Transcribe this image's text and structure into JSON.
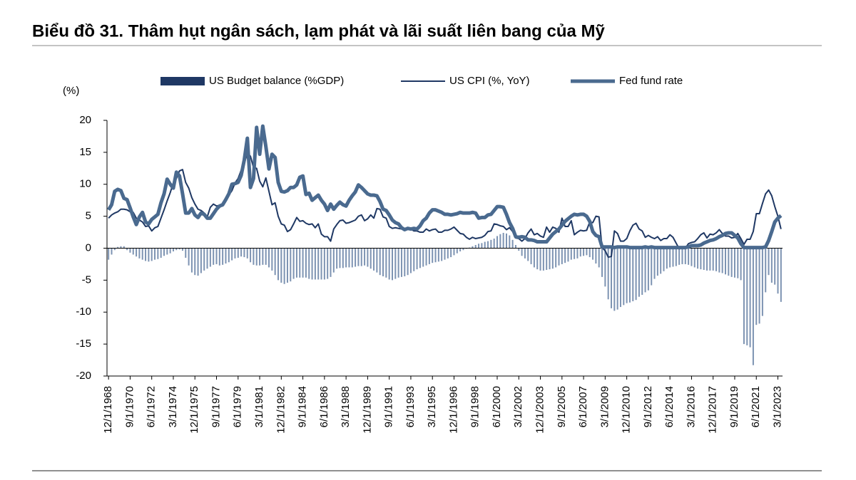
{
  "chart_data": {
    "type": "combo",
    "title": "Biểu đồ 31. Thâm hụt ngân sách, lạm phát và lãi suất liên bang của Mỹ",
    "y_label": "(%)",
    "ylim": [
      -20,
      20
    ],
    "yticks": [
      -20,
      -15,
      -10,
      -5,
      0,
      5,
      10,
      15,
      20
    ],
    "categories": [
      "12/1/1968",
      null,
      null,
      null,
      null,
      null,
      null,
      "9/1/1970",
      null,
      null,
      null,
      null,
      null,
      null,
      "6/1/1972",
      null,
      null,
      null,
      null,
      null,
      null,
      "3/1/1974",
      null,
      null,
      null,
      null,
      null,
      null,
      "12/1/1975",
      null,
      null,
      null,
      null,
      null,
      null,
      "9/1/1977",
      null,
      null,
      null,
      null,
      null,
      null,
      "6/1/1979",
      null,
      null,
      null,
      null,
      null,
      null,
      "3/1/1981",
      null,
      null,
      null,
      null,
      null,
      null,
      "12/1/1982",
      null,
      null,
      null,
      null,
      null,
      null,
      "9/1/1984",
      null,
      null,
      null,
      null,
      null,
      null,
      "6/1/1986",
      null,
      null,
      null,
      null,
      null,
      null,
      "3/1/1988",
      null,
      null,
      null,
      null,
      null,
      null,
      "12/1/1989",
      null,
      null,
      null,
      null,
      null,
      null,
      "9/1/1991",
      null,
      null,
      null,
      null,
      null,
      null,
      "6/1/1993",
      null,
      null,
      null,
      null,
      null,
      null,
      "3/1/1995",
      null,
      null,
      null,
      null,
      null,
      null,
      "12/1/1996",
      null,
      null,
      null,
      null,
      null,
      null,
      "9/1/1998",
      null,
      null,
      null,
      null,
      null,
      null,
      "6/1/2000",
      null,
      null,
      null,
      null,
      null,
      null,
      "3/1/2002",
      null,
      null,
      null,
      null,
      null,
      null,
      "12/1/2003",
      null,
      null,
      null,
      null,
      null,
      null,
      "9/1/2005",
      null,
      null,
      null,
      null,
      null,
      null,
      "6/1/2007",
      null,
      null,
      null,
      null,
      null,
      null,
      "3/1/2009",
      null,
      null,
      null,
      null,
      null,
      null,
      "12/1/2010",
      null,
      null,
      null,
      null,
      null,
      null,
      "9/1/2012",
      null,
      null,
      null,
      null,
      null,
      null,
      "6/1/2014",
      null,
      null,
      null,
      null,
      null,
      null,
      "3/1/2016",
      null,
      null,
      null,
      null,
      null,
      null,
      "12/1/2017",
      null,
      null,
      null,
      null,
      null,
      null,
      "9/1/2019",
      null,
      null,
      null,
      null,
      null,
      null,
      "6/1/2021",
      null,
      null,
      null,
      null,
      null,
      null,
      "3/1/2023",
      null
    ],
    "series": [
      {
        "name": "US Budget balance (%GDP)",
        "type": "bar",
        "color": "#7d93b2",
        "legend_color": "#1f3864",
        "values": [
          -1.8,
          -1.0,
          -0.3,
          0.2,
          0.3,
          0.3,
          -0.3,
          -0.7,
          -1.0,
          -1.3,
          -1.6,
          -1.8,
          -2.0,
          -2.1,
          -2.0,
          -1.8,
          -1.7,
          -1.5,
          -1.2,
          -1.0,
          -0.8,
          -0.5,
          -0.3,
          -0.2,
          -0.4,
          -1.5,
          -2.7,
          -3.8,
          -4.2,
          -4.3,
          -3.9,
          -3.5,
          -3.2,
          -2.9,
          -2.6,
          -2.5,
          -2.7,
          -2.6,
          -2.4,
          -2.2,
          -1.9,
          -1.6,
          -1.5,
          -1.3,
          -1.4,
          -1.6,
          -2.2,
          -2.6,
          -2.7,
          -2.7,
          -2.6,
          -2.6,
          -3.0,
          -3.5,
          -4.2,
          -5.0,
          -5.4,
          -5.6,
          -5.4,
          -5.2,
          -4.8,
          -4.6,
          -4.6,
          -4.6,
          -4.6,
          -4.8,
          -4.9,
          -4.9,
          -4.9,
          -4.9,
          -4.9,
          -4.8,
          -4.5,
          -3.8,
          -3.2,
          -3.1,
          -3.1,
          -3.0,
          -3.0,
          -3.0,
          -2.9,
          -2.8,
          -2.8,
          -2.7,
          -2.9,
          -3.2,
          -3.5,
          -3.8,
          -4.2,
          -4.4,
          -4.6,
          -4.9,
          -5.0,
          -4.8,
          -4.6,
          -4.5,
          -4.4,
          -4.2,
          -3.9,
          -3.6,
          -3.3,
          -3.1,
          -2.9,
          -2.7,
          -2.5,
          -2.3,
          -2.2,
          -2.1,
          -2.0,
          -1.8,
          -1.6,
          -1.4,
          -1.1,
          -0.8,
          -0.5,
          -0.3,
          -0.1,
          0.1,
          0.3,
          0.5,
          0.7,
          0.8,
          1.0,
          1.1,
          1.3,
          1.5,
          1.9,
          2.2,
          2.4,
          2.3,
          2.0,
          1.3,
          0.5,
          -0.4,
          -1.2,
          -1.6,
          -2.0,
          -2.5,
          -3.0,
          -3.3,
          -3.5,
          -3.5,
          -3.4,
          -3.3,
          -3.2,
          -3.0,
          -2.7,
          -2.5,
          -2.3,
          -2.1,
          -1.8,
          -1.7,
          -1.6,
          -1.3,
          -1.2,
          -1.1,
          -1.4,
          -1.8,
          -2.4,
          -3.0,
          -4.5,
          -6.0,
          -8.0,
          -9.4,
          -9.8,
          -9.6,
          -9.2,
          -8.9,
          -8.6,
          -8.5,
          -8.3,
          -8.1,
          -7.6,
          -7.3,
          -6.9,
          -6.6,
          -5.8,
          -4.8,
          -4.3,
          -4.0,
          -3.6,
          -3.2,
          -3.0,
          -2.9,
          -2.8,
          -2.6,
          -2.5,
          -2.5,
          -2.6,
          -2.8,
          -3.0,
          -3.2,
          -3.3,
          -3.4,
          -3.5,
          -3.5,
          -3.5,
          -3.6,
          -3.8,
          -3.9,
          -4.1,
          -4.3,
          -4.5,
          -4.6,
          -4.7,
          -5.0,
          -15.0,
          -15.2,
          -15.5,
          -18.3,
          -12.0,
          -11.8,
          -10.6,
          -6.9,
          -4.2,
          -5.4,
          -5.7,
          -7.1,
          -8.4
        ]
      },
      {
        "name": "US CPI (%, YoY)",
        "type": "line",
        "color": "#1f3864",
        "width": 2,
        "values": [
          4.7,
          5.2,
          5.5,
          5.7,
          6.1,
          6.1,
          6.0,
          5.7,
          5.6,
          4.7,
          4.4,
          4.1,
          3.4,
          3.5,
          2.7,
          3.2,
          3.4,
          4.7,
          6.0,
          7.4,
          8.7,
          10.2,
          10.9,
          12.1,
          12.3,
          10.3,
          9.4,
          7.9,
          6.9,
          6.1,
          5.9,
          5.5,
          4.9,
          6.4,
          6.9,
          6.6,
          6.7,
          6.6,
          7.4,
          8.3,
          9.0,
          10.2,
          10.9,
          12.2,
          13.3,
          14.8,
          14.4,
          12.6,
          12.5,
          10.5,
          9.6,
          11.0,
          8.9,
          6.8,
          7.1,
          5.0,
          3.8,
          3.6,
          2.6,
          2.9,
          3.8,
          4.8,
          4.2,
          4.3,
          3.9,
          3.7,
          3.8,
          3.2,
          3.8,
          2.2,
          1.8,
          1.8,
          1.1,
          3.0,
          3.7,
          4.3,
          4.4,
          3.9,
          4.0,
          4.2,
          4.4,
          5.0,
          5.2,
          4.3,
          4.6,
          5.2,
          4.7,
          6.2,
          6.1,
          4.9,
          4.7,
          3.4,
          3.1,
          3.2,
          3.1,
          3.0,
          2.9,
          3.1,
          3.0,
          2.7,
          2.7,
          2.5,
          2.5,
          3.0,
          2.7,
          2.9,
          3.0,
          2.5,
          2.5,
          2.8,
          2.8,
          3.0,
          3.3,
          2.8,
          2.3,
          2.2,
          1.7,
          1.4,
          1.7,
          1.5,
          1.6,
          1.7,
          2.0,
          2.6,
          2.7,
          3.8,
          3.7,
          3.5,
          3.4,
          2.9,
          3.2,
          2.6,
          1.6,
          1.5,
          1.1,
          1.5,
          2.4,
          3.0,
          2.1,
          2.3,
          1.9,
          1.7,
          3.3,
          2.5,
          3.3,
          3.1,
          2.5,
          4.7,
          3.4,
          3.4,
          4.3,
          2.1,
          2.5,
          2.8,
          2.7,
          2.8,
          4.1,
          4.0,
          5.0,
          4.9,
          0.1,
          -0.4,
          -1.4,
          -1.3,
          2.7,
          2.3,
          1.1,
          1.1,
          1.5,
          2.7,
          3.6,
          3.9,
          3.0,
          2.7,
          1.7,
          2.0,
          1.7,
          1.5,
          1.8,
          1.2,
          1.5,
          1.5,
          2.1,
          1.7,
          0.8,
          -0.1,
          0.1,
          0.0,
          0.7,
          0.9,
          1.0,
          1.5,
          2.1,
          2.4,
          1.6,
          2.2,
          2.1,
          2.4,
          2.9,
          2.3,
          1.9,
          1.9,
          1.6,
          1.7,
          2.3,
          1.5,
          0.6,
          1.4,
          1.4,
          2.6,
          5.4,
          5.4,
          7.0,
          8.5,
          9.1,
          8.2,
          6.5,
          5.0,
          3.0
        ]
      },
      {
        "name": "Fed fund rate",
        "type": "line",
        "color": "#4a6a8f",
        "width": 5,
        "values": [
          6.0,
          6.8,
          8.9,
          9.2,
          9.0,
          7.8,
          7.6,
          6.3,
          4.9,
          3.7,
          4.9,
          5.6,
          4.1,
          3.8,
          4.5,
          4.9,
          5.3,
          7.1,
          8.5,
          10.8,
          10.0,
          9.4,
          11.9,
          11.3,
          8.5,
          5.5,
          5.5,
          6.2,
          5.2,
          4.8,
          5.5,
          5.3,
          4.7,
          4.7,
          5.4,
          6.1,
          6.6,
          6.8,
          7.6,
          8.5,
          10.0,
          10.1,
          10.3,
          11.4,
          13.8,
          17.2,
          9.5,
          10.9,
          18.9,
          14.7,
          19.1,
          15.9,
          12.4,
          14.7,
          14.2,
          10.3,
          8.9,
          8.8,
          9.0,
          9.5,
          9.5,
          9.9,
          11.1,
          11.3,
          8.4,
          8.6,
          7.5,
          7.9,
          8.3,
          7.5,
          6.9,
          5.9,
          6.9,
          6.1,
          6.7,
          7.2,
          6.8,
          6.6,
          7.5,
          8.2,
          8.8,
          9.9,
          9.5,
          9.0,
          8.5,
          8.3,
          8.3,
          8.2,
          7.3,
          6.1,
          5.9,
          5.2,
          4.4,
          4.0,
          3.8,
          3.2,
          2.9,
          3.1,
          3.0,
          3.1,
          3.0,
          3.5,
          4.3,
          4.7,
          5.5,
          6.0,
          6.0,
          5.8,
          5.6,
          5.3,
          5.3,
          5.2,
          5.3,
          5.4,
          5.6,
          5.5,
          5.5,
          5.5,
          5.6,
          5.5,
          4.7,
          4.8,
          4.8,
          5.2,
          5.3,
          5.9,
          6.5,
          6.5,
          6.4,
          5.3,
          4.0,
          3.1,
          1.8,
          1.7,
          1.8,
          1.7,
          1.3,
          1.3,
          1.2,
          1.0,
          1.0,
          1.0,
          1.0,
          1.6,
          2.2,
          2.6,
          3.0,
          3.6,
          4.2,
          4.6,
          5.0,
          5.3,
          5.2,
          5.3,
          5.3,
          5.0,
          4.2,
          2.6,
          2.0,
          1.8,
          0.2,
          0.2,
          0.2,
          0.2,
          0.1,
          0.2,
          0.2,
          0.2,
          0.2,
          0.1,
          0.1,
          0.1,
          0.1,
          0.1,
          0.2,
          0.1,
          0.2,
          0.1,
          0.1,
          0.1,
          0.1,
          0.1,
          0.1,
          0.1,
          0.1,
          0.1,
          0.1,
          0.1,
          0.2,
          0.4,
          0.4,
          0.4,
          0.5,
          0.8,
          1.0,
          1.2,
          1.3,
          1.5,
          1.8,
          2.0,
          2.3,
          2.4,
          2.4,
          2.0,
          1.6,
          0.7,
          0.1,
          0.1,
          0.1,
          0.1,
          0.1,
          0.1,
          0.1,
          0.2,
          1.2,
          2.6,
          4.1,
          4.7,
          5.1
        ]
      }
    ]
  }
}
